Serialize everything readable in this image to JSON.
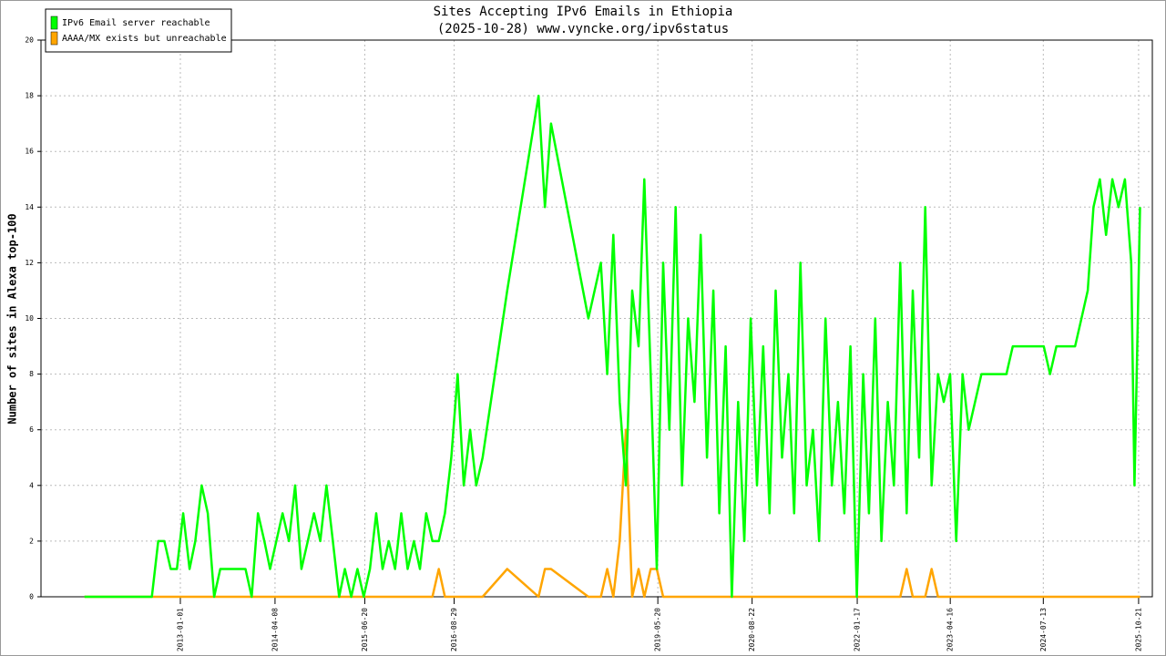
{
  "chart_data": {
    "type": "line",
    "title": "Sites Accepting IPv6 Emails in Ethiopia",
    "subtitle": "(2025-10-28) www.vyncke.org/ipv6status",
    "y_label": "Number of sites in Alexa top-100",
    "x": [
      "2011-09-21",
      "2012-08-15",
      "2012-09-15",
      "2012-10-15",
      "2012-11-15",
      "2012-12-15",
      "2013-01-15",
      "2013-02-15",
      "2013-03-15",
      "2013-04-15",
      "2013-05-15",
      "2013-06-15",
      "2013-07-15",
      "2013-09-15",
      "2013-11-15",
      "2013-12-15",
      "2014-01-15",
      "2014-02-15",
      "2014-03-15",
      "2014-05-15",
      "2014-06-15",
      "2014-07-15",
      "2014-08-15",
      "2014-09-15",
      "2014-10-15",
      "2014-11-15",
      "2014-12-15",
      "2015-01-15",
      "2015-02-15",
      "2015-03-15",
      "2015-04-15",
      "2015-05-15",
      "2015-06-15",
      "2015-07-15",
      "2015-08-15",
      "2015-09-15",
      "2015-10-15",
      "2015-11-15",
      "2015-12-15",
      "2016-01-15",
      "2016-02-15",
      "2016-03-15",
      "2016-04-15",
      "2016-05-15",
      "2016-06-15",
      "2016-07-15",
      "2016-08-15",
      "2016-09-15",
      "2016-10-15",
      "2016-11-15",
      "2016-12-15",
      "2017-01-15",
      "2017-05-15",
      "2017-10-15",
      "2017-11-15",
      "2017-12-15",
      "2018-06-15",
      "2018-08-15",
      "2018-09-15",
      "2018-10-15",
      "2018-11-15",
      "2018-12-15",
      "2019-01-15",
      "2019-02-15",
      "2019-03-15",
      "2019-04-15",
      "2019-05-15",
      "2019-06-15",
      "2019-07-15",
      "2019-08-15",
      "2019-09-15",
      "2019-10-15",
      "2019-11-15",
      "2019-12-15",
      "2020-01-15",
      "2020-02-15",
      "2020-03-15",
      "2020-04-15",
      "2020-05-15",
      "2020-06-15",
      "2020-07-15",
      "2020-08-15",
      "2020-09-15",
      "2020-10-15",
      "2020-11-15",
      "2020-12-15",
      "2021-01-15",
      "2021-02-15",
      "2021-03-15",
      "2021-04-15",
      "2021-05-15",
      "2021-06-15",
      "2021-07-15",
      "2021-08-15",
      "2021-09-15",
      "2021-10-15",
      "2021-11-15",
      "2021-12-15",
      "2022-01-15",
      "2022-02-15",
      "2022-03-15",
      "2022-04-15",
      "2022-05-15",
      "2022-06-15",
      "2022-07-15",
      "2022-08-15",
      "2022-09-15",
      "2022-10-15",
      "2022-11-15",
      "2022-12-15",
      "2023-01-15",
      "2023-02-15",
      "2023-03-15",
      "2023-04-15",
      "2023-05-15",
      "2023-06-15",
      "2023-07-15",
      "2023-09-15",
      "2024-01-15",
      "2024-02-15",
      "2024-07-15",
      "2024-08-15",
      "2024-09-15",
      "2024-12-15",
      "2025-01-15",
      "2025-02-15",
      "2025-03-15",
      "2025-04-15",
      "2025-05-15",
      "2025-06-15",
      "2025-07-15",
      "2025-08-15",
      "2025-09-15",
      "2025-10-01",
      "2025-10-28"
    ],
    "series": [
      {
        "name": "IPv6 Email server reachable",
        "color": "#00ff00",
        "values": [
          0,
          0,
          2,
          2,
          1,
          1,
          3,
          1,
          2,
          4,
          3,
          0,
          1,
          1,
          1,
          0,
          3,
          2,
          1,
          3,
          2,
          4,
          1,
          2,
          3,
          2,
          4,
          2,
          0,
          1,
          0,
          1,
          0,
          1,
          3,
          1,
          2,
          1,
          3,
          1,
          2,
          1,
          3,
          2,
          2,
          3,
          5,
          8,
          4,
          6,
          4,
          5,
          11,
          18,
          14,
          17,
          10,
          12,
          8,
          13,
          7,
          4,
          11,
          9,
          15,
          8,
          1,
          12,
          6,
          14,
          4,
          10,
          7,
          13,
          5,
          11,
          3,
          9,
          0,
          7,
          2,
          10,
          4,
          9,
          3,
          11,
          5,
          8,
          3,
          12,
          4,
          6,
          2,
          10,
          4,
          7,
          3,
          9,
          0,
          8,
          3,
          10,
          2,
          7,
          4,
          12,
          3,
          11,
          5,
          14,
          4,
          8,
          7,
          8,
          2,
          8,
          6,
          8,
          8,
          9,
          9,
          8,
          9,
          9,
          10,
          11,
          14,
          15,
          13,
          15,
          14,
          15,
          12,
          4,
          14
        ]
      },
      {
        "name": "AAAA/MX exists but unreachable",
        "color": "#ffa500",
        "values": [
          0,
          0,
          0,
          0,
          0,
          0,
          0,
          0,
          0,
          0,
          0,
          0,
          0,
          0,
          0,
          0,
          0,
          0,
          0,
          0,
          0,
          0,
          0,
          0,
          0,
          0,
          0,
          0,
          0,
          0,
          0,
          0,
          0,
          0,
          0,
          0,
          0,
          0,
          0,
          0,
          0,
          0,
          0,
          0,
          1,
          0,
          0,
          0,
          0,
          0,
          0,
          0,
          1,
          0,
          1,
          1,
          0,
          0,
          1,
          0,
          2,
          6,
          0,
          1,
          0,
          1,
          1,
          0,
          0,
          0,
          0,
          0,
          0,
          0,
          0,
          0,
          0,
          0,
          0,
          0,
          0,
          0,
          0,
          0,
          0,
          0,
          0,
          0,
          0,
          0,
          0,
          0,
          0,
          0,
          0,
          0,
          0,
          0,
          0,
          0,
          0,
          0,
          0,
          0,
          0,
          0,
          1,
          0,
          0,
          0,
          1,
          0,
          0,
          0,
          0,
          0,
          0,
          0,
          0,
          0,
          0,
          0,
          0,
          0,
          0,
          0,
          0,
          0,
          0,
          0,
          0,
          0,
          0,
          0,
          0
        ]
      }
    ],
    "xlim": [
      "2011-02-21",
      "2025-12-27"
    ],
    "xticks": [
      "2013-01-01",
      "2014-04-08",
      "2015-06-20",
      "2016-08-29",
      "2019-05-20",
      "2020-08-22",
      "2022-01-17",
      "2023-04-16",
      "2024-07-13",
      "2025-10-21"
    ],
    "ylim": [
      0,
      20
    ],
    "yticks": [
      0,
      2,
      4,
      6,
      8,
      10,
      12,
      14,
      16,
      18,
      20
    ],
    "grid": true,
    "legend": "upper-left"
  }
}
